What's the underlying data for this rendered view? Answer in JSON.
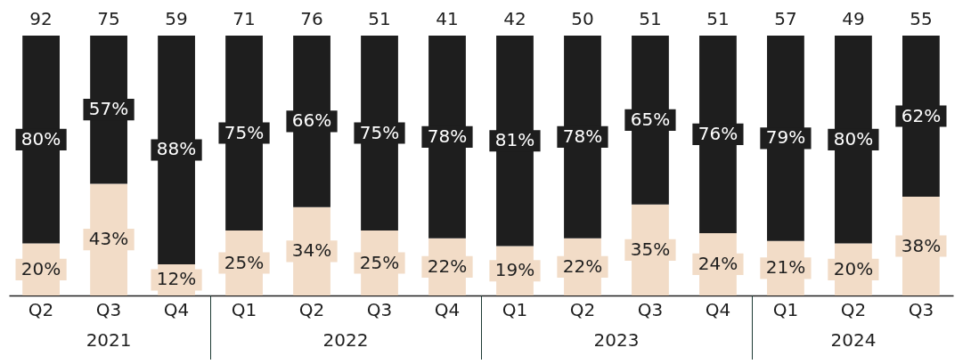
{
  "chart_data": {
    "type": "bar",
    "stacked": true,
    "legend": false,
    "tick_labels": "x",
    "ylim": [
      0,
      100
    ],
    "categories": [
      "Q2",
      "Q3",
      "Q4",
      "Q1",
      "Q2",
      "Q3",
      "Q4",
      "Q1",
      "Q2",
      "Q3",
      "Q4",
      "Q1",
      "Q2",
      "Q3"
    ],
    "series": [
      {
        "color": "#f2dcc7",
        "values": [
          20,
          43,
          12,
          25,
          34,
          25,
          22,
          19,
          22,
          35,
          24,
          21,
          20,
          38
        ],
        "value_labels": [
          "20%",
          "43%",
          "12%",
          "25%",
          "34%",
          "25%",
          "22%",
          "19%",
          "22%",
          "35%",
          "24%",
          "21%",
          "20%",
          "38%"
        ]
      },
      {
        "color": "#1e1e1e",
        "values": [
          80,
          57,
          88,
          75,
          66,
          75,
          78,
          81,
          78,
          65,
          76,
          79,
          80,
          62
        ],
        "value_labels": [
          "80%",
          "57%",
          "88%",
          "75%",
          "66%",
          "75%",
          "78%",
          "81%",
          "78%",
          "65%",
          "76%",
          "79%",
          "80%",
          "62%"
        ]
      }
    ],
    "annotations": [
      "92",
      "75",
      "59",
      "71",
      "76",
      "51",
      "41",
      "42",
      "50",
      "51",
      "51",
      "57",
      "49",
      "55",
      "2021",
      "2022",
      "2023",
      "2024"
    ]
  }
}
